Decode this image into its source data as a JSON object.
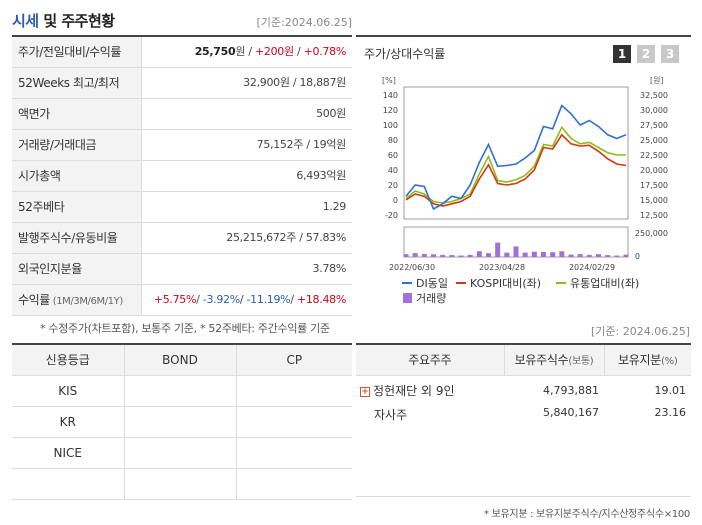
{
  "header": {
    "title_accent": "시세",
    "title_rest": " 및 주주현황",
    "base_date": "[기준:2024.06.25]"
  },
  "stats": [
    {
      "label": "주가/전일대비/수익률",
      "parts": [
        {
          "text": "25,750",
          "cls": "b"
        },
        {
          "text": "원 / ",
          "cls": ""
        },
        {
          "text": "+200",
          "cls": "red"
        },
        {
          "text": "원",
          "cls": "red"
        },
        {
          "text": " / ",
          "cls": ""
        },
        {
          "text": "+0.78%",
          "cls": "red"
        }
      ]
    },
    {
      "label": "52Weeks 최고/최저",
      "parts": [
        {
          "text": "32,900원 / 18,887원",
          "cls": ""
        }
      ]
    },
    {
      "label": "액면가",
      "parts": [
        {
          "text": "500원",
          "cls": ""
        }
      ]
    },
    {
      "label": "거래량/거래대금",
      "parts": [
        {
          "text": "75,152주 / 19억원",
          "cls": ""
        }
      ]
    },
    {
      "label": "시가총액",
      "parts": [
        {
          "text": "6,493억원",
          "cls": ""
        }
      ]
    },
    {
      "label": "52주베타",
      "parts": [
        {
          "text": "1.29",
          "cls": ""
        }
      ]
    },
    {
      "label": "발행주식수/유동비율",
      "parts": [
        {
          "text": "25,215,672주 / 57.83%",
          "cls": ""
        }
      ]
    },
    {
      "label": "외국인지분율",
      "parts": [
        {
          "text": "3.78%",
          "cls": ""
        }
      ]
    },
    {
      "label": "수익률",
      "label_small": " (1M/3M/6M/1Y)",
      "parts": [
        {
          "text": "+5.75%",
          "cls": "red"
        },
        {
          "text": "/ ",
          "cls": ""
        },
        {
          "text": "-3.92%",
          "cls": "blue"
        },
        {
          "text": "/ ",
          "cls": ""
        },
        {
          "text": "-11.19%",
          "cls": "blue"
        },
        {
          "text": "/ ",
          "cls": ""
        },
        {
          "text": "+18.48%",
          "cls": "red"
        }
      ]
    }
  ],
  "note1": "* 수정주가(차트포함), 보통주 기준, * 52주베타: 주간수익률 기준",
  "chart_panel": {
    "title": "주가/상대수익률",
    "tabs": [
      "1",
      "2",
      "3"
    ]
  },
  "chart_data": {
    "type": "line",
    "left_unit": "[%]",
    "right_unit": "[원]",
    "y_left": {
      "min": -20,
      "max": 140,
      "ticks": [
        -20,
        0,
        20,
        40,
        60,
        80,
        100,
        120,
        140
      ]
    },
    "y_right_ticks": [
      "12,500",
      "15,000",
      "17,500",
      "20,000",
      "22,500",
      "25,000",
      "27,500",
      "30,000",
      "32,500"
    ],
    "volume_ticks": [
      "250,000",
      "0"
    ],
    "x_labels": [
      "2022/06/30",
      "2023/04/28",
      "2024/02/29"
    ],
    "legend": [
      {
        "name": "DI동일",
        "color": "#2f6fd6",
        "kind": "line"
      },
      {
        "name": "KOSPI대비(좌)",
        "color": "#d4380d",
        "kind": "line"
      },
      {
        "name": "유통업대비(좌)",
        "color": "#8bbd1a",
        "kind": "line"
      },
      {
        "name": "거래량",
        "color": "#a071d6",
        "kind": "box"
      }
    ],
    "series": [
      {
        "name": "DI동일",
        "values": [
          5,
          20,
          18,
          -12,
          -5,
          5,
          2,
          20,
          50,
          74,
          45,
          46,
          48,
          56,
          66,
          98,
          95,
          126,
          115,
          100,
          106,
          98,
          87,
          82,
          87
        ]
      },
      {
        "name": "KOSPI대비(좌)",
        "values": [
          0,
          8,
          5,
          -5,
          -8,
          -5,
          -2,
          5,
          28,
          47,
          22,
          20,
          22,
          28,
          40,
          70,
          68,
          87,
          75,
          72,
          73,
          65,
          55,
          48,
          46
        ]
      },
      {
        "name": "유통업대비(좌)",
        "values": [
          2,
          12,
          8,
          -2,
          -4,
          -2,
          2,
          8,
          35,
          58,
          26,
          24,
          27,
          33,
          45,
          74,
          72,
          97,
          82,
          75,
          77,
          70,
          63,
          60,
          60
        ]
      }
    ],
    "volume": [
      30,
      40,
      32,
      28,
      22,
      20,
      15,
      22,
      60,
      40,
      150,
      45,
      110,
      45,
      55,
      52,
      50,
      60,
      25,
      30,
      22,
      30,
      20,
      15,
      25
    ],
    "volume_max": 250
  },
  "base_date_mid": "[기준: 2024.06.25]",
  "credit": {
    "headers": [
      "신용등급",
      "BOND",
      "CP"
    ],
    "rows": [
      [
        "KIS",
        "",
        ""
      ],
      [
        "KR",
        "",
        ""
      ],
      [
        "NICE",
        "",
        ""
      ],
      [
        "",
        "",
        ""
      ]
    ]
  },
  "holders": {
    "headers": [
      "주요주주",
      "보유주식수",
      "(보통)",
      "보유지분",
      "(%)"
    ],
    "rows": [
      {
        "name": "정헌재단 외 9인",
        "shares": "4,793,881",
        "pct": "19.01",
        "expand": "+"
      },
      {
        "name": "자사주",
        "shares": "5,840,167",
        "pct": "23.16",
        "expand": ""
      }
    ]
  },
  "note2": "* 보유지분 : 보유지분주식수/지수산정주식수×100"
}
